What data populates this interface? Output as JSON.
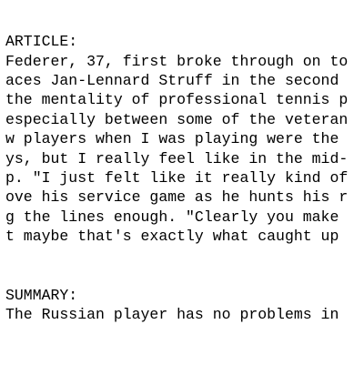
{
  "article": {
    "heading": "ARTICLE:",
    "lines": [
      "Federer, 37, first broke through on to",
      "aces Jan-Lennard Struff in the second",
      "the mentality of professional tennis p",
      "especially between some of the veteran",
      "w players when I was playing were the",
      "ys, but I really feel like in the mid-",
      "p. \"I just felt like it really kind of",
      "ove his service game as he hunts his r",
      "g the lines enough. \"Clearly you make",
      "t maybe that's exactly what caught up"
    ]
  },
  "summary": {
    "heading": "SUMMARY:",
    "lines": [
      "The Russian player has no problems in"
    ]
  }
}
